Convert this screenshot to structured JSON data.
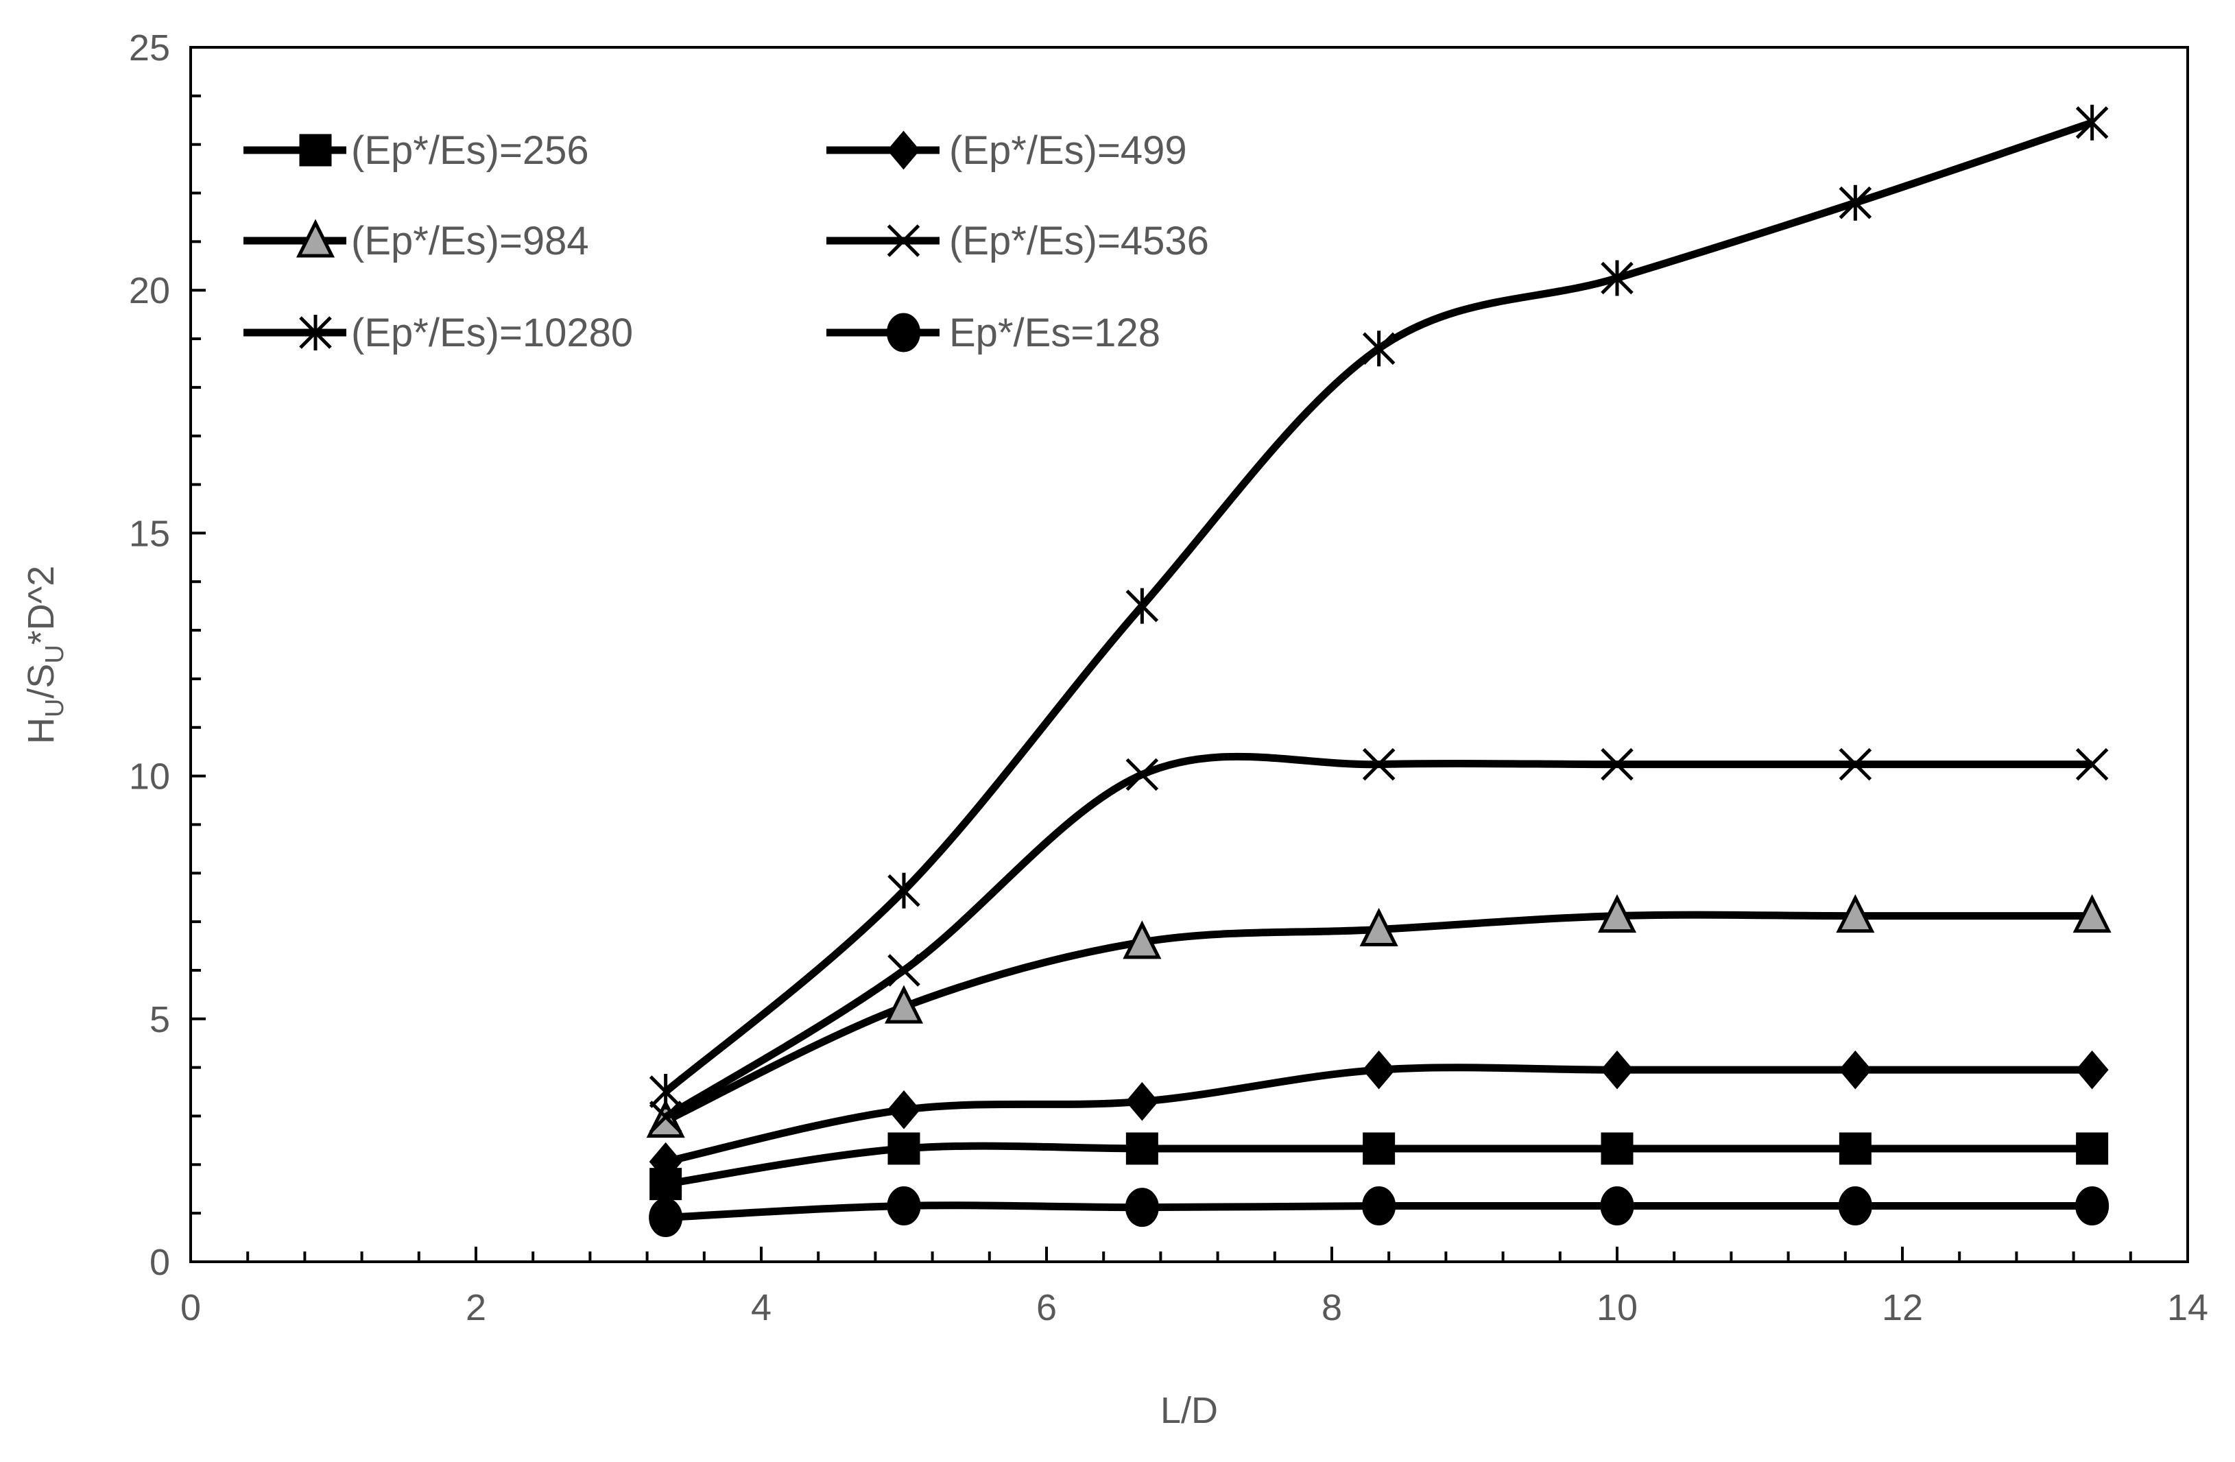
{
  "chart_data": {
    "type": "line",
    "title": "",
    "xlabel": "L/D",
    "ylabel_parts": [
      "H",
      "U",
      "/S",
      "U",
      "*D^2"
    ],
    "xlim": [
      0,
      14
    ],
    "ylim": [
      0,
      25
    ],
    "xticks": [
      0,
      2,
      4,
      6,
      8,
      10,
      12,
      14
    ],
    "yticks": [
      0,
      5,
      10,
      15,
      20,
      25
    ],
    "grid": false,
    "smoothed": true,
    "legend_placement": "top-left",
    "line_color": "#000000",
    "x": [
      3.33,
      5,
      6.67,
      8.33,
      10,
      11.67,
      13.33
    ],
    "series": [
      {
        "name": "(Ep*/Es)=256",
        "marker": "square",
        "fill": "#000000",
        "values": [
          1.6,
          2.33,
          2.33,
          2.33,
          2.33,
          2.33,
          2.33
        ]
      },
      {
        "name": "(Ep*/Es)=499",
        "marker": "diamond",
        "fill": "#000000",
        "values": [
          2.06,
          3.13,
          3.3,
          3.95,
          3.95,
          3.95,
          3.95
        ]
      },
      {
        "name": "(Ep*/Es)=984",
        "marker": "triangle",
        "fill": "#a6a6a6",
        "values": [
          2.9,
          5.25,
          6.58,
          6.84,
          7.12,
          7.12,
          7.12
        ]
      },
      {
        "name": "(Ep*/Es)=4536",
        "marker": "x",
        "fill": "#000000",
        "values": [
          2.98,
          6.0,
          10.03,
          10.24,
          10.24,
          10.24,
          10.24
        ]
      },
      {
        "name": "(Ep*/Es)=10280",
        "marker": "star",
        "fill": "#000000",
        "values": [
          3.5,
          7.64,
          13.5,
          18.8,
          20.25,
          21.8,
          23.45
        ]
      },
      {
        "name": "Ep*/Es=128",
        "marker": "circle",
        "fill": "#000000",
        "values": [
          0.91,
          1.15,
          1.12,
          1.15,
          1.15,
          1.15,
          1.15
        ]
      }
    ]
  }
}
